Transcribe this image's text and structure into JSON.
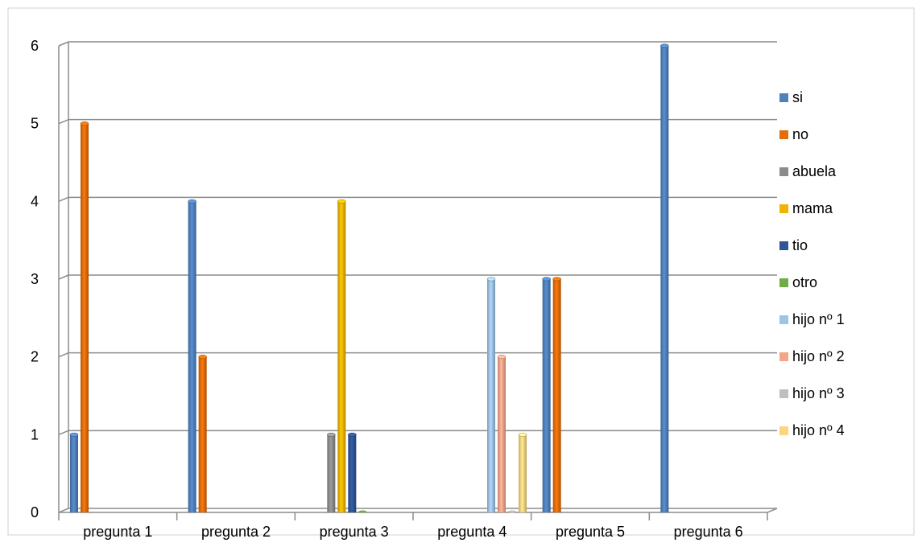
{
  "chart_data": {
    "type": "bar",
    "title": "",
    "xlabel": "",
    "ylabel": "",
    "ylim": [
      0,
      6
    ],
    "yticks": [
      0,
      1,
      2,
      3,
      4,
      5,
      6
    ],
    "grid": true,
    "legend_position": "right",
    "categories": [
      "pregunta 1",
      "pregunta  2",
      "pregunta 3",
      "pregunta 4",
      "pregunta 5",
      "pregunta 6"
    ],
    "series": [
      {
        "name": "si",
        "color": "#4F81BD",
        "values": [
          1,
          4,
          0,
          0,
          3,
          6
        ]
      },
      {
        "name": "no",
        "color": "#E46C0A",
        "values": [
          5,
          2,
          0,
          0,
          3,
          0
        ]
      },
      {
        "name": "abuela",
        "color": "#8C8C8C",
        "values": [
          0,
          0,
          1,
          0,
          0,
          0
        ]
      },
      {
        "name": "mama",
        "color": "#F0B400",
        "values": [
          0,
          0,
          4,
          0,
          0,
          0
        ]
      },
      {
        "name": "tio",
        "color": "#2F5597",
        "values": [
          0,
          0,
          1,
          0,
          0,
          0
        ]
      },
      {
        "name": "otro",
        "color": "#70AD47",
        "values": [
          0,
          0,
          0,
          0,
          0,
          0
        ]
      },
      {
        "name": "hijo nº 1",
        "color": "#9DC3E6",
        "values": [
          0,
          0,
          0,
          3,
          0,
          0
        ]
      },
      {
        "name": "hijo nº 2",
        "color": "#F4A58A",
        "values": [
          0,
          0,
          0,
          2,
          0,
          0
        ]
      },
      {
        "name": "hijo nº 3",
        "color": "#BFBFBF",
        "values": [
          0,
          0,
          0,
          0,
          0,
          0
        ]
      },
      {
        "name": "hijo nº 4",
        "color": "#FFD47F",
        "values": [
          0,
          0,
          0,
          1,
          0,
          0
        ]
      }
    ]
  }
}
